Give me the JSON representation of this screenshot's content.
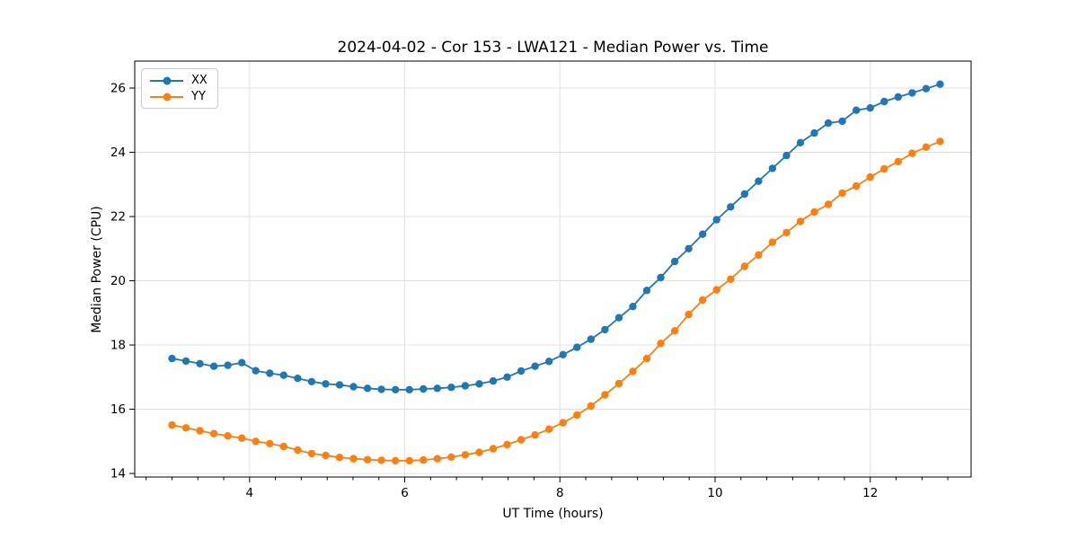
{
  "chart_data": {
    "type": "line",
    "title": "2024-04-02 - Cor 153 - LWA121 - Median Power vs. Time",
    "xlabel": "UT Time (hours)",
    "ylabel": "Median Power (CPU)",
    "xlim": [
      2.52,
      13.3
    ],
    "ylim": [
      13.89,
      26.84
    ],
    "x_ticks": [
      4,
      6,
      8,
      10,
      12
    ],
    "x_minor_tick_step": 0.33333,
    "y_ticks": [
      14,
      16,
      18,
      20,
      22,
      24,
      26
    ],
    "grid": true,
    "legend_position": "upper left",
    "marker": "circle",
    "colors": {
      "xx": "#1f77b4",
      "yy": "#ff7f0e",
      "grid": "#e0e0e0",
      "spine": "#000000",
      "text": "#000000",
      "legend_border": "#cccccc"
    },
    "x": [
      3.0,
      3.18,
      3.36,
      3.54,
      3.72,
      3.9,
      4.08,
      4.26,
      4.44,
      4.62,
      4.8,
      4.98,
      5.16,
      5.34,
      5.52,
      5.7,
      5.88,
      6.06,
      6.24,
      6.42,
      6.6,
      6.78,
      6.96,
      7.14,
      7.32,
      7.5,
      7.68,
      7.86,
      8.04,
      8.22,
      8.4,
      8.58,
      8.76,
      8.94,
      9.12,
      9.3,
      9.48,
      9.66,
      9.84,
      10.02,
      10.2,
      10.38,
      10.56,
      10.74,
      10.92,
      11.1,
      11.28,
      11.46,
      11.64,
      11.82,
      12.0,
      12.18,
      12.36,
      12.54,
      12.72,
      12.9
    ],
    "series": [
      {
        "name": "XX",
        "color": "#1f77b4",
        "values": [
          17.58,
          17.5,
          17.42,
          17.34,
          17.37,
          17.45,
          17.2,
          17.12,
          17.06,
          16.96,
          16.86,
          16.79,
          16.76,
          16.7,
          16.65,
          16.62,
          16.61,
          16.61,
          16.63,
          16.65,
          16.68,
          16.73,
          16.79,
          16.88,
          17.0,
          17.19,
          17.34,
          17.49,
          17.7,
          17.93,
          18.18,
          18.48,
          18.85,
          19.2,
          19.7,
          20.1,
          20.6,
          21.0,
          21.45,
          21.9,
          22.3,
          22.7,
          23.1,
          23.5,
          23.9,
          24.3,
          24.6,
          24.91,
          24.97,
          25.31,
          25.38,
          25.58,
          25.72,
          25.85,
          25.98,
          26.12
        ]
      },
      {
        "name": "YY",
        "color": "#ff7f0e",
        "values": [
          15.51,
          15.42,
          15.33,
          15.24,
          15.17,
          15.1,
          15.0,
          14.93,
          14.84,
          14.73,
          14.62,
          14.56,
          14.5,
          14.46,
          14.43,
          14.41,
          14.4,
          14.4,
          14.42,
          14.46,
          14.51,
          14.58,
          14.66,
          14.77,
          14.9,
          15.05,
          15.2,
          15.38,
          15.58,
          15.82,
          16.1,
          16.45,
          16.8,
          17.18,
          17.58,
          18.05,
          18.44,
          18.95,
          19.4,
          19.72,
          20.05,
          20.45,
          20.8,
          21.2,
          21.5,
          21.85,
          22.14,
          22.38,
          22.73,
          22.95,
          23.23,
          23.48,
          23.71,
          23.97,
          24.16,
          24.34
        ]
      }
    ]
  }
}
